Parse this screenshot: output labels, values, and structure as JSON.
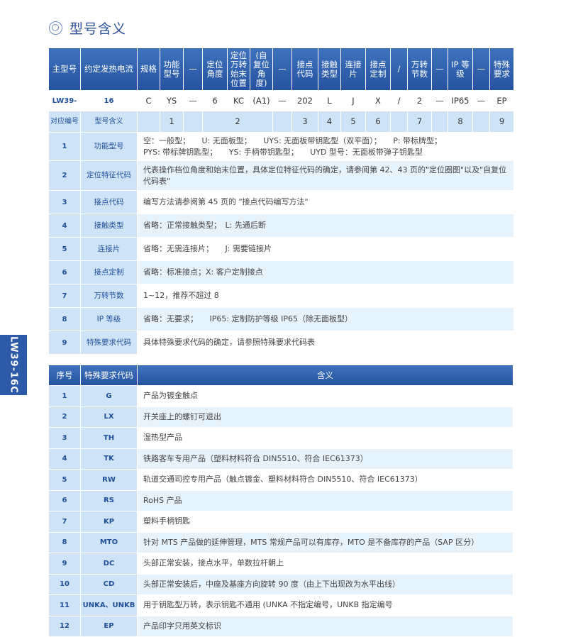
{
  "title": "型号含义",
  "side_tab": "LW39-16C",
  "model_table": {
    "headers": [
      "主型号",
      "约定发热电流",
      "规格",
      "功能型号",
      "—",
      "定位角度",
      "定位万转始末位置",
      "(自复位角度)",
      "—",
      "接点代码",
      "接触类型",
      "连接片",
      "接点定制",
      "/",
      "万转节数",
      "—",
      "IP 等级",
      "—",
      "特殊要求"
    ],
    "values": [
      "LW39-",
      "16",
      "C",
      "YS",
      "—",
      "6",
      "KC",
      "(A1)",
      "—",
      "202",
      "L",
      "J",
      "X",
      "/",
      "2",
      "—",
      "IP65",
      "—",
      "EP"
    ],
    "mapping_label": "对应编号",
    "mapping_name": "型号含义",
    "mapping": [
      "1",
      "2",
      "3",
      "4",
      "5",
      "6",
      "7",
      "8",
      "9"
    ]
  },
  "meaning_rows": [
    {
      "no": "1",
      "label": "功能型号",
      "desc": "空：一般型；　　U: 无面板型；　　UYS: 无面板带钥匙型（双平面）；　　P: 带标牌型；",
      "desc2": "PYS: 带标牌钥匙型；　　YS: 手柄带钥匙型；　　UYD 型号：无面板带弹子钥匙型"
    },
    {
      "no": "2",
      "label": "定位特征代码",
      "desc": "代表操作档位角度和始末位置，具体定位特征代码的确定，请参阅第 42、43 页的\"定位圈图\"以及\"自复位代码表\""
    },
    {
      "no": "3",
      "label": "接点代码",
      "desc": "编写方法请参阅第 45 页的 \"接点代码编写方法\""
    },
    {
      "no": "4",
      "label": "接触类型",
      "desc": "省略：正常接触类型；　L: 先通后断"
    },
    {
      "no": "5",
      "label": "连接片",
      "desc": "省略：无需连接片；　　J: 需要链接片"
    },
    {
      "no": "6",
      "label": "接点定制",
      "desc": "省略：标准接点；X: 客户定制接点"
    },
    {
      "no": "7",
      "label": "万转节数",
      "desc": "1~12，推荐不超过 8"
    },
    {
      "no": "8",
      "label": "IP 等级",
      "desc": "省略：无要求；　　IP65: 定制防护等级 IP65（除无面板型）"
    },
    {
      "no": "9",
      "label": "特殊要求代码",
      "desc": "具体特殊要求代码的确定，请参照特殊要求代码表"
    }
  ],
  "special_table": {
    "headers": [
      "序号",
      "特殊要求代码",
      "含义"
    ],
    "rows": [
      {
        "no": "1",
        "code": "G",
        "desc": "产品为镀金触点"
      },
      {
        "no": "2",
        "code": "LX",
        "desc": "开关座上的螺钉可退出"
      },
      {
        "no": "3",
        "code": "TH",
        "desc": "湿热型产品"
      },
      {
        "no": "4",
        "code": "TK",
        "desc": "铁路客车专用产品（塑料材料符合 DIN5510、符合 IEC61373）"
      },
      {
        "no": "5",
        "code": "RW",
        "desc": "轨道交通司控专用产品（触点镀金、塑料材料符合 DIN5510、符合 IEC61373）"
      },
      {
        "no": "6",
        "code": "RS",
        "desc": "RoHS 产品"
      },
      {
        "no": "7",
        "code": "KP",
        "desc": "塑料手柄钥匙"
      },
      {
        "no": "8",
        "code": "MTO",
        "desc": "针对 MTS 产品做的延伸管理，MTS 常规产品可以有库存，MTO 是不备库存的产品（SAP 区分）"
      },
      {
        "no": "9",
        "code": "DC",
        "desc": "头部正常安装，接点水平，单数拉杆朝上"
      },
      {
        "no": "10",
        "code": "CD",
        "desc": "头部正常安装后，中座及基座方向旋转 90 度（由上下出现改为水平出线）"
      },
      {
        "no": "11",
        "code": "UNKA、UNKB",
        "desc": "用于钥匙型万转，表示钥匙不通用 (UNKA 不指定编号，UNKB 指定编号"
      },
      {
        "no": "12",
        "code": "EP",
        "desc": "产品印字只用英文标识"
      }
    ]
  },
  "colors": {
    "header_blue": "#2d5aa8",
    "key_cell": "#cfe3f7",
    "alt_row": "#e6f2fc",
    "key_text": "#1f4f9a"
  }
}
